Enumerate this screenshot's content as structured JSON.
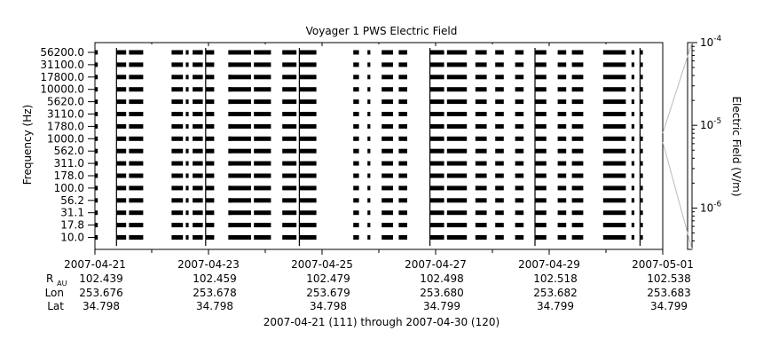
{
  "chart_data": {
    "type": "heatmap",
    "title": "Voyager 1 PWS Electric Field",
    "ylabel": "Frequency (Hz)",
    "colorbar_label": "Electric Field (V/m)",
    "colorbar_ticks": [
      {
        "base": "10",
        "exp": "-4",
        "value": 0.0001
      },
      {
        "base": "10",
        "exp": "-5",
        "value": 1e-05
      },
      {
        "base": "10",
        "exp": "-6",
        "value": 1e-06
      }
    ],
    "frequency_channels": [
      "56200.0",
      "31100.0",
      "17800.0",
      "10000.0",
      "5620.0",
      "3110.0",
      "1780.0",
      "1000.0",
      "562.0",
      "311.0",
      "178.0",
      "100.0",
      "56.2",
      "31.1",
      "17.8",
      "10.0"
    ],
    "x_tick_labels": [
      "2007-04-21",
      "2007-04-23",
      "2007-04-25",
      "2007-04-27",
      "2007-04-29",
      "2007-05-01"
    ],
    "x_range_days": [
      0,
      10
    ],
    "data_segments_days": [
      [
        0.0,
        0.05
      ],
      [
        0.38,
        0.55
      ],
      [
        0.6,
        0.85
      ],
      [
        1.35,
        1.55
      ],
      [
        1.6,
        1.65
      ],
      [
        1.72,
        1.9
      ],
      [
        1.95,
        2.1
      ],
      [
        2.35,
        2.4
      ],
      [
        2.35,
        2.75
      ],
      [
        2.8,
        3.1
      ],
      [
        3.3,
        3.55
      ],
      [
        3.6,
        3.9
      ],
      [
        4.55,
        4.65
      ],
      [
        4.8,
        4.85
      ],
      [
        5.05,
        5.25
      ],
      [
        5.35,
        5.5
      ],
      [
        5.9,
        6.15
      ],
      [
        6.2,
        6.55
      ],
      [
        6.7,
        6.9
      ],
      [
        7.05,
        7.2
      ],
      [
        7.4,
        7.55
      ],
      [
        7.75,
        7.95
      ],
      [
        8.15,
        8.3
      ],
      [
        8.4,
        8.6
      ],
      [
        8.95,
        9.35
      ],
      [
        9.45,
        9.5
      ],
      [
        9.6,
        9.65
      ]
    ],
    "grid": false
  },
  "ephemeris": {
    "row_labels": {
      "r": "R",
      "r_sub": "AU",
      "lon": "Lon",
      "lat": "Lat"
    },
    "columns": [
      {
        "r": "102.439",
        "lon": "253.676",
        "lat": "34.798"
      },
      {
        "r": "102.459",
        "lon": "253.678",
        "lat": "34.798"
      },
      {
        "r": "102.479",
        "lon": "253.679",
        "lat": "34.798"
      },
      {
        "r": "102.498",
        "lon": "253.680",
        "lat": "34.799"
      },
      {
        "r": "102.518",
        "lon": "253.682",
        "lat": "34.799"
      },
      {
        "r": "102.538",
        "lon": "253.683",
        "lat": "34.799"
      }
    ]
  },
  "date_range_caption": "2007-04-21 (111) through 2007-04-30 (120)"
}
